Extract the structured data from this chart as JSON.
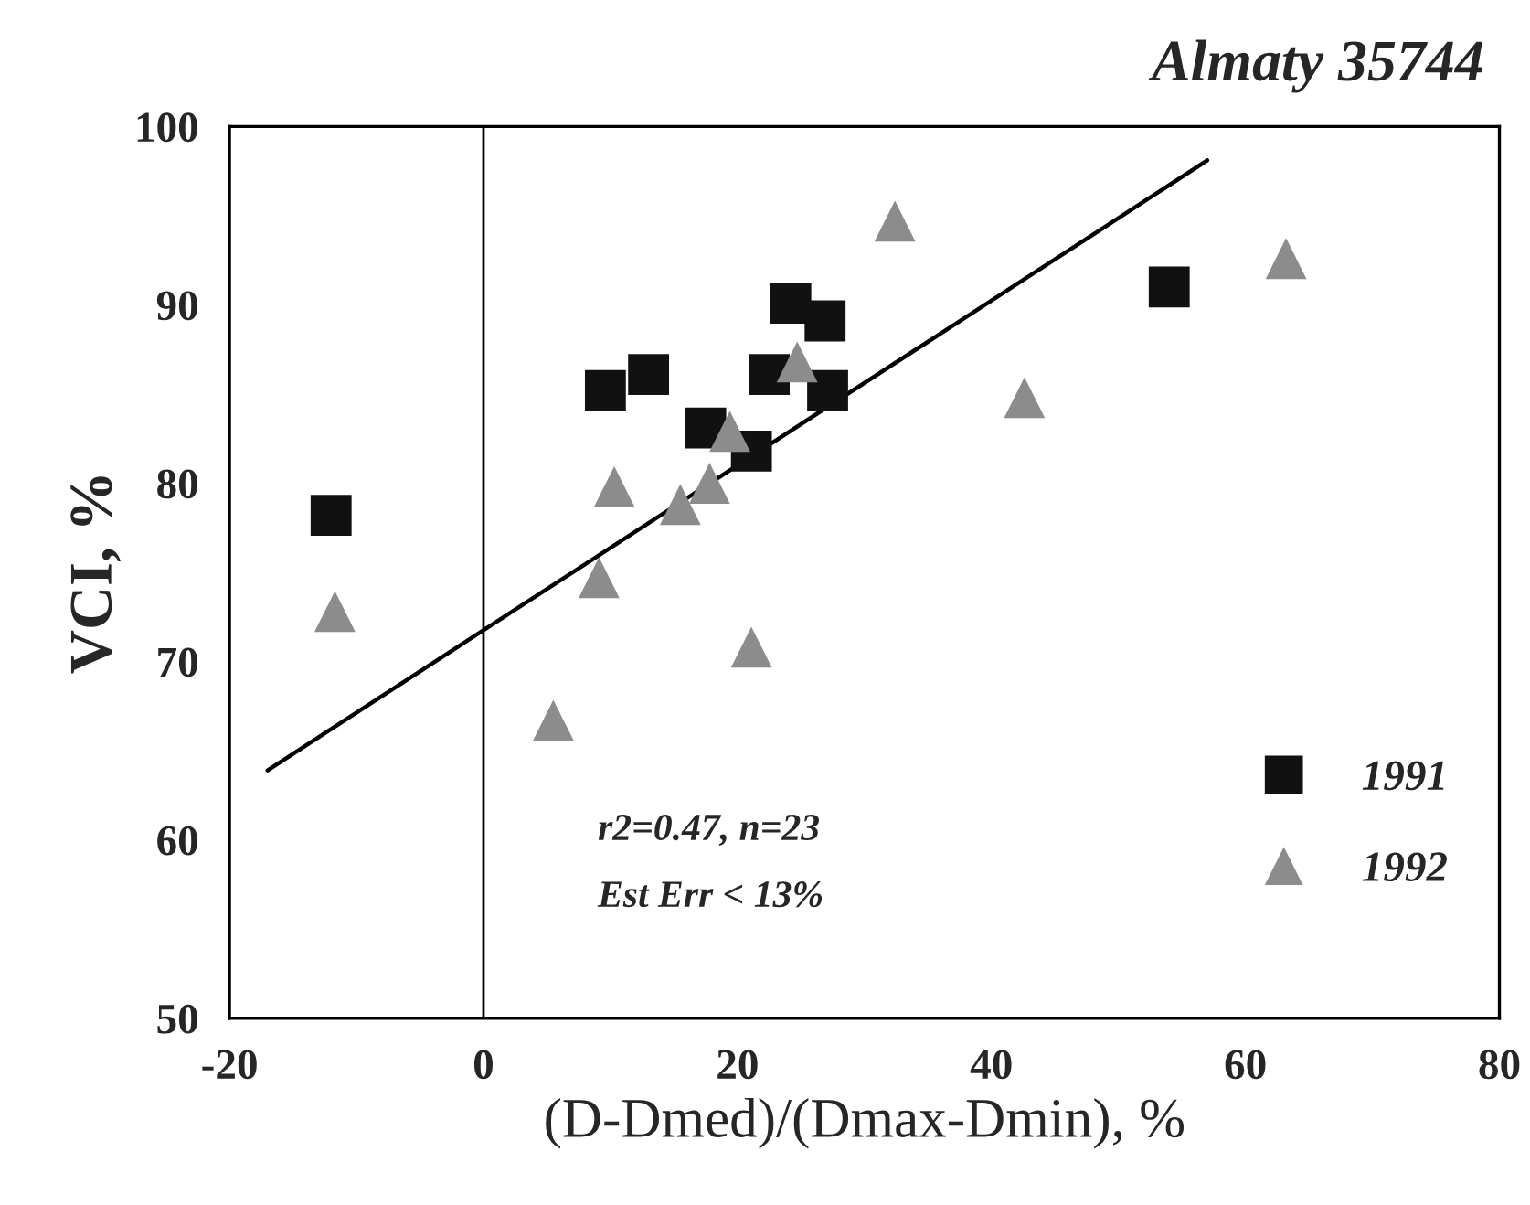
{
  "chart_data": {
    "type": "scatter",
    "title": "Almaty 35744",
    "xlabel": "(D-Dmed)/(Dmax-Dmin), %",
    "ylabel": "VCI, %",
    "series": [
      {
        "name": "1991",
        "color": "#111111",
        "marker": "square",
        "x": [
          -12,
          9.6,
          13,
          17.5,
          21.1,
          22.5,
          24.2,
          26.9,
          27.1,
          54
        ],
        "values": [
          78.2,
          85.2,
          86.1,
          83.1,
          81.8,
          86.1,
          90.1,
          89.1,
          85.2,
          91
        ]
      },
      {
        "name": "1992",
        "color": "#8c8c8c",
        "marker": "triangle",
        "x": [
          -11.7,
          5.5,
          9.1,
          10.3,
          15.5,
          17.8,
          19.4,
          21.1,
          24.7,
          32.4,
          42.6,
          63.2
        ],
        "values": [
          72.8,
          66.7,
          74.7,
          79.8,
          78.8,
          80,
          82.9,
          70.8,
          86.8,
          94.7,
          84.8,
          92.6
        ]
      },
      {
        "type": "line",
        "color": "#000000",
        "x": [
          -17,
          57
        ],
        "values": [
          63.9,
          98.1
        ]
      }
    ],
    "ref_lines": [
      {
        "axis": "x",
        "value": 0,
        "color": "#000000"
      }
    ],
    "annotations": [
      "r2=0.47, n=23",
      "Est Err < 13%"
    ],
    "xlim": [
      -20,
      80
    ],
    "xticks": [
      -20,
      0,
      20,
      40,
      60,
      80
    ],
    "ylim": [
      50,
      100
    ],
    "yticks": [
      50,
      60,
      70,
      80,
      90,
      100
    ],
    "legend": "bottom right",
    "grid": false
  }
}
